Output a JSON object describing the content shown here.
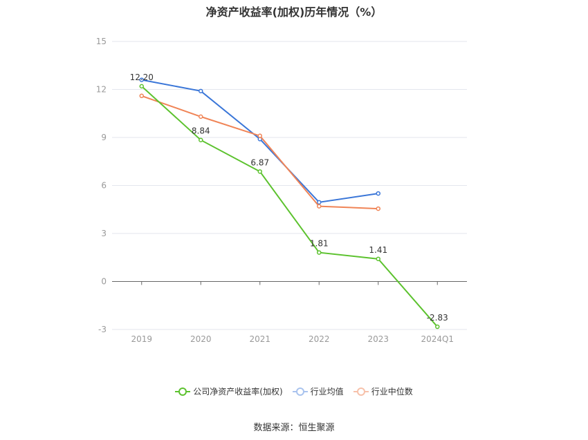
{
  "chart_data": {
    "type": "line",
    "title": "净资产收益率(加权)历年情况（%）",
    "categories": [
      "2019",
      "2020",
      "2021",
      "2022",
      "2023",
      "2024Q1"
    ],
    "yticks": [
      "15",
      "12",
      "9",
      "6",
      "3",
      "0",
      "-3"
    ],
    "ylim": [
      -3,
      15
    ],
    "grid": true,
    "legend_position": "bottom",
    "series": [
      {
        "name": "公司净资产收益率(加权)",
        "color": "#5cc22e",
        "values": [
          12.2,
          8.84,
          6.87,
          1.81,
          1.41,
          -2.83
        ],
        "labels": [
          "12.20",
          "8.84",
          "6.87",
          "1.81",
          "1.41",
          "-2.83"
        ]
      },
      {
        "name": "行业均值",
        "color": "#3a76d8",
        "values": [
          12.6,
          11.9,
          8.9,
          4.95,
          5.5,
          null
        ]
      },
      {
        "name": "行业中位数",
        "color": "#f08456",
        "values": [
          11.6,
          10.3,
          9.1,
          4.7,
          4.55,
          null
        ]
      }
    ]
  },
  "source": "数据来源：恒生聚源"
}
